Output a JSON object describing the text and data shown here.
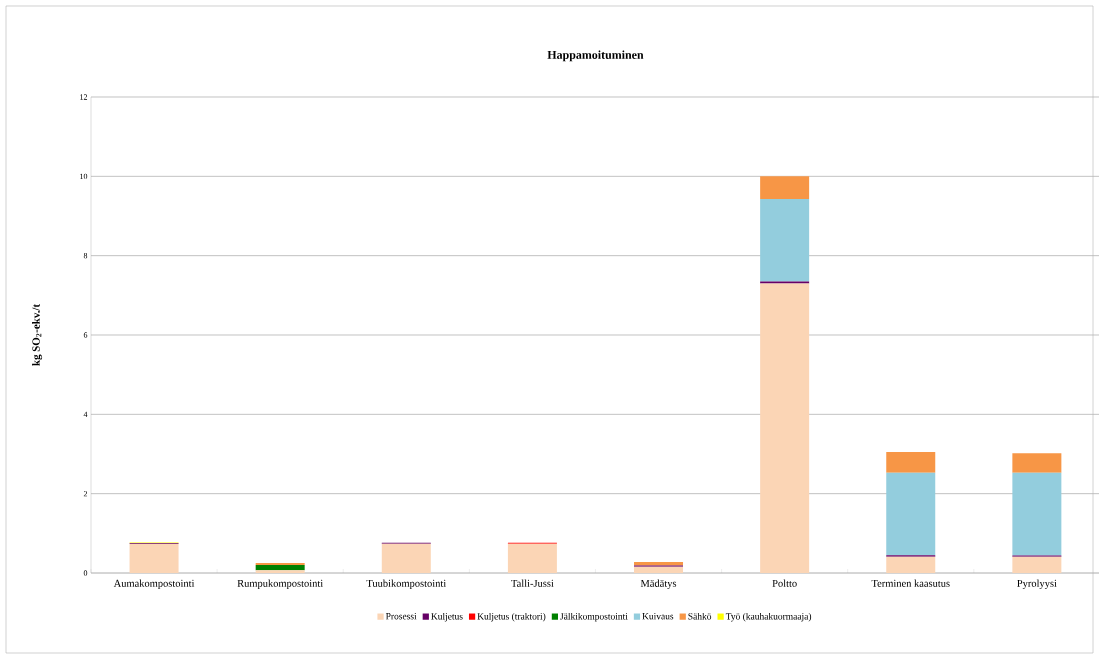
{
  "chart_data": {
    "type": "bar",
    "stacked": true,
    "title": "Happamoituminen",
    "ylabel": "kg SO$_{2}$-ekv./t",
    "categories": [
      "Aumakompostointi",
      "Rumpukompostointi",
      "Tuubikompostointi",
      "Talli-Jussi",
      "Mädätys",
      "Poltto",
      "Terminen kaasutus",
      "Pyrolyysi"
    ],
    "series": [
      {
        "name": "Prosessi",
        "color": "#fbd5b5",
        "values": [
          0.73,
          0.07,
          0.74,
          0.74,
          0.16,
          7.3,
          0.41,
          0.41
        ]
      },
      {
        "name": "Kuljetus",
        "color": "#660066",
        "values": [
          0.02,
          0,
          0.02,
          0,
          0.03,
          0.05,
          0.04,
          0.03
        ]
      },
      {
        "name": "Kuljetus (traktori)",
        "color": "#ff0000",
        "values": [
          0,
          0,
          0,
          0.02,
          0,
          0,
          0,
          0
        ]
      },
      {
        "name": "Jälkikompostointi",
        "color": "#008000",
        "values": [
          0,
          0.13,
          0,
          0,
          0,
          0,
          0,
          0
        ]
      },
      {
        "name": "Kuivaus",
        "color": "#93cddd",
        "values": [
          0,
          0,
          0,
          0,
          0,
          2.08,
          2.08,
          2.09
        ]
      },
      {
        "name": "Sähkö",
        "color": "#f79646",
        "values": [
          0,
          0.05,
          0,
          0,
          0.09,
          0.57,
          0.52,
          0.49
        ]
      },
      {
        "name": "Työ (kauhakuormaaja)",
        "color": "#ffff00",
        "values": [
          0.02,
          0,
          0,
          0,
          0,
          0,
          0,
          0
        ]
      }
    ],
    "ylim": [
      0,
      12
    ],
    "yticks": [
      0,
      2,
      4,
      6,
      8,
      10,
      12
    ],
    "grid": "y",
    "legend": "bottom"
  }
}
